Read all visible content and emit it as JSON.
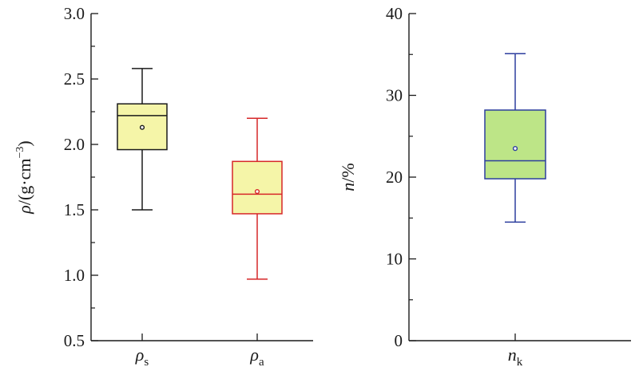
{
  "chart_data": [
    {
      "type": "box",
      "ylabel": "ρ/(g·cm⁻³)",
      "ylabel_parts": {
        "symbol": "ρ",
        "unit_text": "/(g·cm",
        "unit_exp": "−3",
        "close": ")"
      },
      "ylim": [
        0.5,
        3.0
      ],
      "yticks": [
        0.5,
        1.0,
        1.5,
        2.0,
        2.5,
        3.0
      ],
      "ytick_labels": [
        "0.5",
        "1.0",
        "1.5",
        "2.0",
        "2.5",
        "3.0"
      ],
      "categories": [
        {
          "symbol": "ρ",
          "sub": "s",
          "name": "ρs"
        },
        {
          "symbol": "ρ",
          "sub": "a",
          "name": "ρa"
        }
      ],
      "boxes": [
        {
          "category": "ρs",
          "min": 1.5,
          "q1": 1.96,
          "median": 2.22,
          "q3": 2.31,
          "max": 2.58,
          "mean": 2.13,
          "fill": "#f5f5a8",
          "stroke": "#1a1a1a",
          "mean_color": "#1a1a1a"
        },
        {
          "category": "ρa",
          "min": 0.97,
          "q1": 1.47,
          "median": 1.62,
          "q3": 1.87,
          "max": 2.2,
          "mean": 1.64,
          "fill": "#f5f5a8",
          "stroke": "#d62728",
          "mean_color": "#d62728"
        }
      ]
    },
    {
      "type": "box",
      "ylabel": "n/%",
      "ylabel_parts": {
        "symbol": "n",
        "unit_text": "/%"
      },
      "ylim": [
        0,
        40
      ],
      "yticks": [
        0,
        10,
        20,
        30,
        40
      ],
      "ytick_labels": [
        "0",
        "10",
        "20",
        "30",
        "40"
      ],
      "categories": [
        {
          "symbol": "n",
          "sub": "k",
          "name": "nk"
        }
      ],
      "boxes": [
        {
          "category": "nk",
          "min": 14.5,
          "q1": 19.8,
          "median": 22.0,
          "q3": 28.2,
          "max": 35.1,
          "mean": 23.5,
          "fill": "#bde587",
          "stroke": "#2c3e9e",
          "mean_color": "#2c3e9e"
        }
      ]
    }
  ],
  "colors": {
    "axis": "#1a1a1a",
    "background": "#ffffff"
  }
}
